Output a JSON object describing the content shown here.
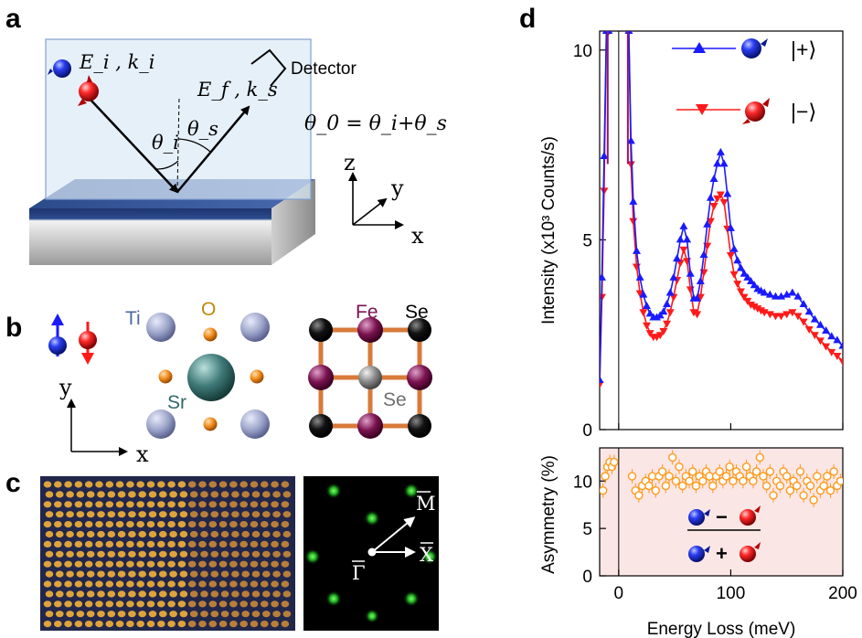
{
  "panels": {
    "a": {
      "letter": "a",
      "incident_label": "E_i , k_i",
      "scattered_label": "E_f , k_s",
      "detector_label": "Detector",
      "theta_i": "θ_i",
      "theta_s": "θ_s",
      "equation": "θ_0 = θ_i+θ_s",
      "axis_z": "z",
      "axis_y": "y",
      "axis_x": "x"
    },
    "b": {
      "letter": "b",
      "atom_ti": "Ti",
      "atom_o": "O",
      "atom_sr": "Sr",
      "atom_fe": "Fe",
      "atom_se_top": "Se",
      "atom_se_center": "Se",
      "axis_y": "y",
      "axis_x": "x"
    },
    "c": {
      "letter": "c",
      "label_m": "M",
      "label_x": "X",
      "label_gamma": "Γ"
    },
    "d": {
      "letter": "d",
      "legend_plus": "|+⟩",
      "legend_minus": "|−⟩",
      "ylabel_top": "Intensity (x10³ Counts/s)",
      "ylabel_bottom": "Asymmetry (%)",
      "xlabel": "Energy Loss (meV)",
      "asym_minus": "−",
      "asym_plus": "+"
    }
  },
  "colors": {
    "plus": "#1a1aff",
    "minus": "#ff1a1a",
    "asym": "#ff9a1a",
    "asym_fill": "#fbe6e6",
    "fe": "#7a1350",
    "ti": "#9aa2c8",
    "sr": "#3f7a78",
    "o": "#f08a1a",
    "se_center": "#8a8a8a"
  },
  "chart_data": [
    {
      "type": "line",
      "name": "intensity",
      "xlim": [
        -17,
        200
      ],
      "ylim": [
        0,
        10.5
      ],
      "xticks": [
        0,
        100,
        200
      ],
      "yticks": [
        0,
        5,
        10
      ],
      "series": [
        {
          "name": "|+⟩",
          "x": [
            -17,
            -15,
            -13,
            -11,
            -9,
            9,
            11,
            13,
            16,
            19,
            22,
            25,
            28,
            31,
            34,
            37,
            40,
            43,
            46,
            49,
            52,
            55,
            58,
            61,
            64,
            67,
            70,
            73,
            76,
            79,
            82,
            85,
            88,
            91,
            94,
            97,
            100,
            103,
            106,
            109,
            112,
            115,
            118,
            121,
            124,
            127,
            130,
            135,
            140,
            145,
            150,
            155,
            160,
            165,
            170,
            175,
            180,
            185,
            190,
            195,
            200
          ],
          "y": [
            1.3,
            4.0,
            7.2,
            10.5,
            10.5,
            10.5,
            7.6,
            6.0,
            4.7,
            4.0,
            3.55,
            3.25,
            3.05,
            2.95,
            2.95,
            3.0,
            3.1,
            3.3,
            3.6,
            4.0,
            4.5,
            5.0,
            5.35,
            5.0,
            4.1,
            3.45,
            3.45,
            3.9,
            4.6,
            5.4,
            6.1,
            6.6,
            7.0,
            7.3,
            7.0,
            6.2,
            5.3,
            4.75,
            4.45,
            4.25,
            4.1,
            4.0,
            3.9,
            3.8,
            3.7,
            3.65,
            3.6,
            3.55,
            3.5,
            3.5,
            3.55,
            3.6,
            3.5,
            3.3,
            3.1,
            2.9,
            2.75,
            2.6,
            2.45,
            2.35,
            2.2
          ]
        },
        {
          "name": "|−⟩",
          "x": [
            -17,
            -15,
            -13,
            -11,
            -9,
            9,
            11,
            13,
            16,
            19,
            22,
            25,
            28,
            31,
            34,
            37,
            40,
            43,
            46,
            49,
            52,
            55,
            58,
            61,
            64,
            67,
            70,
            73,
            76,
            79,
            82,
            85,
            88,
            91,
            94,
            97,
            100,
            103,
            106,
            109,
            112,
            115,
            118,
            121,
            124,
            127,
            130,
            135,
            140,
            145,
            150,
            155,
            160,
            165,
            170,
            175,
            180,
            185,
            190,
            195,
            200
          ],
          "y": [
            1.2,
            3.5,
            6.3,
            10.5,
            10.5,
            10.5,
            7.0,
            5.5,
            4.3,
            3.6,
            3.1,
            2.75,
            2.55,
            2.45,
            2.45,
            2.5,
            2.6,
            2.8,
            3.1,
            3.5,
            3.95,
            4.4,
            4.75,
            4.45,
            3.7,
            3.1,
            3.05,
            3.5,
            4.15,
            4.85,
            5.5,
            5.9,
            6.1,
            6.2,
            6.0,
            5.3,
            4.6,
            4.1,
            3.85,
            3.65,
            3.5,
            3.4,
            3.3,
            3.25,
            3.2,
            3.15,
            3.1,
            3.05,
            3.0,
            3.0,
            3.05,
            3.1,
            3.0,
            2.85,
            2.65,
            2.5,
            2.35,
            2.2,
            2.05,
            1.95,
            1.8
          ]
        }
      ]
    },
    {
      "type": "scatter",
      "name": "asymmetry",
      "xlim": [
        -17,
        200
      ],
      "ylim": [
        0,
        13.5
      ],
      "xticks": [
        0,
        100,
        200
      ],
      "yticks": [
        0,
        5,
        10
      ],
      "x": [
        -14,
        -12,
        -10,
        -8,
        -6,
        -4,
        12,
        15,
        18,
        21,
        24,
        27,
        30,
        33,
        36,
        39,
        42,
        45,
        48,
        51,
        54,
        57,
        60,
        63,
        66,
        69,
        72,
        75,
        78,
        81,
        84,
        87,
        90,
        93,
        96,
        99,
        102,
        105,
        108,
        111,
        114,
        117,
        120,
        123,
        126,
        129,
        132,
        135,
        138,
        141,
        144,
        147,
        150,
        153,
        156,
        159,
        162,
        165,
        168,
        171,
        174,
        177,
        180,
        183,
        186,
        189,
        192,
        195,
        198
      ],
      "y": [
        9.0,
        10.5,
        11.5,
        12.0,
        11.5,
        12.0,
        10.5,
        9.0,
        8.5,
        9.5,
        10.0,
        9.5,
        10.5,
        9.0,
        10.5,
        11.0,
        9.5,
        10.5,
        12.5,
        10.0,
        11.5,
        9.5,
        10.5,
        10.0,
        11.0,
        9.5,
        10.5,
        10.0,
        11.0,
        10.5,
        9.5,
        10.5,
        11.0,
        10.0,
        10.5,
        11.5,
        10.0,
        11.0,
        10.5,
        10.0,
        11.5,
        10.5,
        10.0,
        11.0,
        12.5,
        10.5,
        9.5,
        11.0,
        8.5,
        10.0,
        9.5,
        11.0,
        10.5,
        9.0,
        10.0,
        9.5,
        11.0,
        8.5,
        10.0,
        9.5,
        8.0,
        10.5,
        9.0,
        9.5,
        10.5,
        9.0,
        11.0,
        9.5,
        10.0
      ]
    }
  ]
}
